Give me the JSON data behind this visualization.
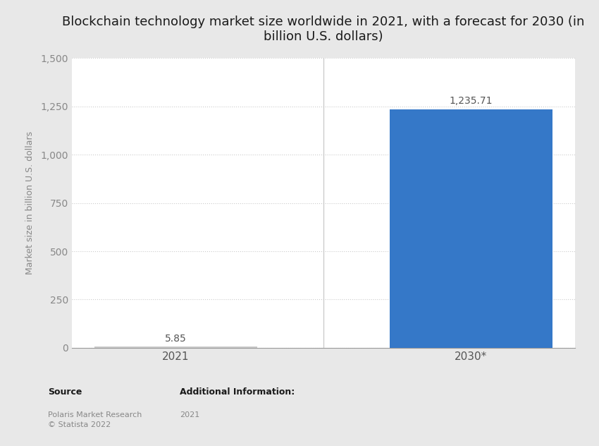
{
  "title": "Blockchain technology market size worldwide in 2021, with a forecast for 2030 (in\nbillion U.S. dollars)",
  "categories": [
    "2021",
    "2030*"
  ],
  "values": [
    5.85,
    1235.71
  ],
  "bar_color_2021": "#c8c8c8",
  "bar_color_2030": "#3578c8",
  "ylabel": "Market size in billion U.S. dollars",
  "ylim": [
    0,
    1500
  ],
  "yticks": [
    0,
    250,
    500,
    750,
    1000,
    1250,
    1500
  ],
  "background_color": "#e8e8e8",
  "plot_background_color": "#ffffff",
  "left_panel_color": "#e8e8e8",
  "title_fontsize": 13,
  "label_fontsize": 9,
  "tick_fontsize": 10,
  "value_label_2021": "5.85",
  "value_label_2030": "1,235.71",
  "source_text": "Source",
  "source_detail": "Polaris Market Research\n© Statista 2022",
  "additional_info_label": "Additional Information:",
  "additional_info_value": "2021",
  "footer_fontsize": 8,
  "grid_color": "#cccccc",
  "axis_color": "#999999",
  "divider_color": "#cccccc"
}
